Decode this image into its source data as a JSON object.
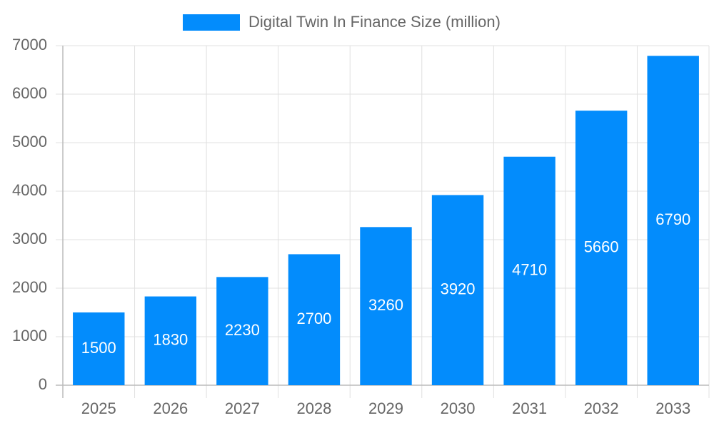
{
  "chart_data": {
    "type": "bar",
    "categories": [
      "2025",
      "2026",
      "2027",
      "2028",
      "2029",
      "2030",
      "2031",
      "2032",
      "2033"
    ],
    "series": [
      {
        "name": "Digital Twin In Finance Size (million)",
        "color": "#038cfc",
        "values": [
          1500,
          1830,
          2230,
          2700,
          3260,
          3920,
          4710,
          5660,
          6790
        ]
      }
    ],
    "ylim": [
      0,
      7000
    ],
    "yticks": [
      0,
      1000,
      2000,
      3000,
      4000,
      5000,
      6000,
      7000
    ],
    "grid": true,
    "legend": "top",
    "value_labels_inside": true
  }
}
